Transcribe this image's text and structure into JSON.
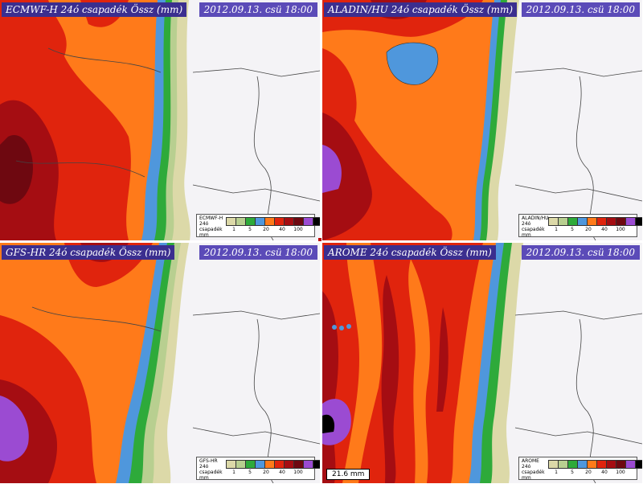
{
  "colors": {
    "background": "#f4f3f6",
    "sand": "#dcd9a8",
    "green_dark": "#2eaa3a",
    "green_light": "#8fd04a",
    "blue": "#4f97dc",
    "orange": "#ff7a1a",
    "red": "#e0240d",
    "dark_red": "#a50d12",
    "maroon": "#6e0810",
    "purple": "#9b4bd2",
    "black": "#000000",
    "title_bg": "#3b2e8f",
    "date_bg": "#5b4bb8"
  },
  "legend_colors": [
    "#dcd9a8",
    "#b8cf90",
    "#2eaa3a",
    "#4f97dc",
    "#ff7a1a",
    "#e0240d",
    "#a50d12",
    "#6e0810",
    "#9b4bd2",
    "#000000"
  ],
  "legend_ticks": [
    "1",
    "5",
    "20",
    "40",
    "100"
  ],
  "panels": [
    {
      "title": "ECMWF-H 24ó csapadék Össz (mm)",
      "date": "2012.09.13. csü 18:00",
      "legend_name": "ECMWF-H 24ó csapadék mm",
      "model": "ecmwf"
    },
    {
      "title": "ALADIN/HU 24ó csapadék Össz (mm)",
      "date": "2012.09.13. csü 18:00",
      "legend_name": "ALADIN/HU 24ó csapadék mm",
      "model": "aladin"
    },
    {
      "title": "GFS-HR 24ó csapadék Össz (mm)",
      "date": "2012.09.13. csü 18:00",
      "legend_name": "GFS-HR 24ó csapadék mm",
      "model": "gfs"
    },
    {
      "title": "AROME 24ó csapadék Össz (mm)",
      "date": "2012.09.13. csü 18:00",
      "legend_name": "AROME 24ó csapadék mm",
      "model": "arome",
      "readout": "21.6 mm"
    }
  ]
}
